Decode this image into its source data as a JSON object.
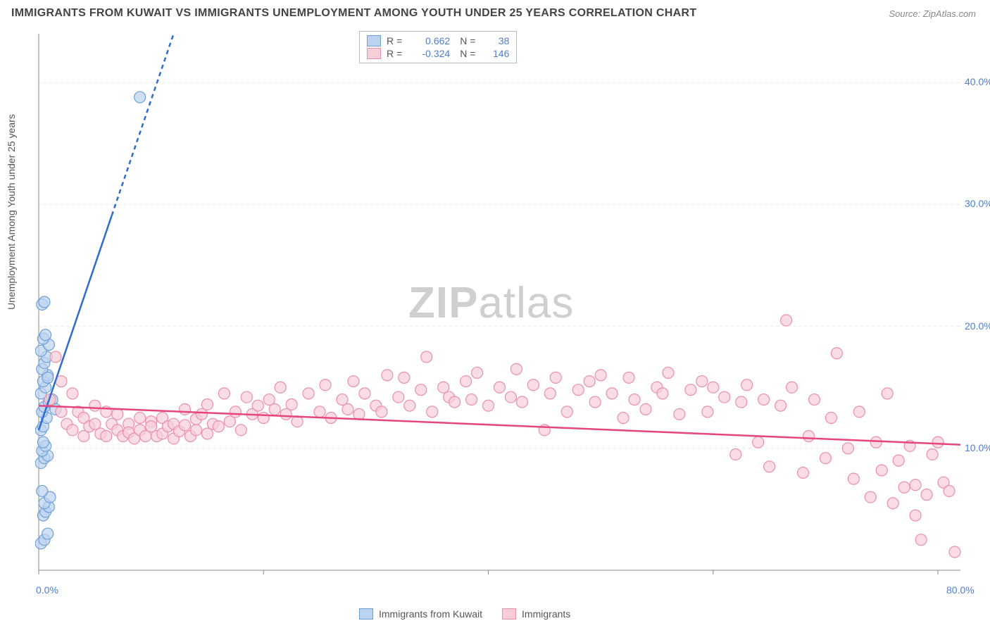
{
  "title": "IMMIGRANTS FROM KUWAIT VS IMMIGRANTS UNEMPLOYMENT AMONG YOUTH UNDER 25 YEARS CORRELATION CHART",
  "source": "Source: ZipAtlas.com",
  "ylabel": "Unemployment Among Youth under 25 years",
  "watermark_a": "ZIP",
  "watermark_b": "atlas",
  "chart": {
    "type": "scatter",
    "background_color": "#ffffff",
    "grid_color": "#e8e8e8",
    "axis_color": "#888888",
    "tick_label_color": "#4a7fd6",
    "xlim": [
      0,
      82
    ],
    "ylim": [
      0,
      44
    ],
    "y_ticks": [
      10,
      20,
      30,
      40
    ],
    "y_tick_labels": [
      "10.0%",
      "20.0%",
      "30.0%",
      "40.0%"
    ],
    "x_ticks": [
      0,
      20,
      40,
      60,
      80
    ],
    "x_tick_labels_left": "0.0%",
    "x_tick_labels_right": "80.0%",
    "series": [
      {
        "name": "Immigrants from Kuwait",
        "color_fill": "#bcd3ef",
        "color_stroke": "#6f9fd8",
        "marker_radius": 8,
        "line_color": "#2e6bd0",
        "line_width": 2.5,
        "line_dash_after_x": 6.5,
        "trend": {
          "x1": 0,
          "y1": 11.5,
          "x2": 12,
          "y2": 44
        },
        "R": "0.662",
        "N": "38",
        "points": [
          [
            0.2,
            2.2
          ],
          [
            0.5,
            2.5
          ],
          [
            0.8,
            3.0
          ],
          [
            0.4,
            4.5
          ],
          [
            0.6,
            4.8
          ],
          [
            0.9,
            5.2
          ],
          [
            0.5,
            5.5
          ],
          [
            1.0,
            6.0
          ],
          [
            0.3,
            6.5
          ],
          [
            0.2,
            8.8
          ],
          [
            0.5,
            9.2
          ],
          [
            0.8,
            9.4
          ],
          [
            0.3,
            9.8
          ],
          [
            0.6,
            10.2
          ],
          [
            0.4,
            10.5
          ],
          [
            0.2,
            11.5
          ],
          [
            0.4,
            11.8
          ],
          [
            0.7,
            12.5
          ],
          [
            0.3,
            13.0
          ],
          [
            0.5,
            13.4
          ],
          [
            0.9,
            13.8
          ],
          [
            0.2,
            14.5
          ],
          [
            0.6,
            15.0
          ],
          [
            0.4,
            15.5
          ],
          [
            0.8,
            16.0
          ],
          [
            0.3,
            16.5
          ],
          [
            0.5,
            17.0
          ],
          [
            0.7,
            17.5
          ],
          [
            0.2,
            18.0
          ],
          [
            0.9,
            18.5
          ],
          [
            0.4,
            19.0
          ],
          [
            0.6,
            19.3
          ],
          [
            0.3,
            21.8
          ],
          [
            0.5,
            22.0
          ],
          [
            0.8,
            15.8
          ],
          [
            1.2,
            14.0
          ],
          [
            1.5,
            13.2
          ],
          [
            9.0,
            38.8
          ]
        ]
      },
      {
        "name": "Immigrants",
        "color_fill": "#f7cdd8",
        "color_stroke": "#e98fac",
        "marker_radius": 8,
        "line_color": "#e6457d",
        "line_width": 2.5,
        "trend": {
          "x1": 0,
          "y1": 13.5,
          "x2": 82,
          "y2": 10.3
        },
        "R": "-0.324",
        "N": "146",
        "points": [
          [
            1,
            14
          ],
          [
            1.5,
            17.5
          ],
          [
            2,
            13
          ],
          [
            2,
            15.5
          ],
          [
            2.5,
            12
          ],
          [
            3,
            11.5
          ],
          [
            3,
            14.5
          ],
          [
            3.5,
            13
          ],
          [
            4,
            11
          ],
          [
            4,
            12.5
          ],
          [
            4.5,
            11.8
          ],
          [
            5,
            12
          ],
          [
            5,
            13.5
          ],
          [
            5.5,
            11.2
          ],
          [
            6,
            11
          ],
          [
            6,
            13
          ],
          [
            6.5,
            12
          ],
          [
            7,
            11.5
          ],
          [
            7,
            12.8
          ],
          [
            7.5,
            11
          ],
          [
            8,
            12
          ],
          [
            8,
            11.3
          ],
          [
            8.5,
            10.8
          ],
          [
            9,
            12.5
          ],
          [
            9,
            11.5
          ],
          [
            9.5,
            11
          ],
          [
            10,
            12.2
          ],
          [
            10,
            11.8
          ],
          [
            10.5,
            11
          ],
          [
            11,
            12.5
          ],
          [
            11,
            11.2
          ],
          [
            11.5,
            11.8
          ],
          [
            12,
            10.8
          ],
          [
            12,
            12
          ],
          [
            12.5,
            11.4
          ],
          [
            13,
            11.9
          ],
          [
            13,
            13.2
          ],
          [
            13.5,
            11
          ],
          [
            14,
            12.4
          ],
          [
            14,
            11.5
          ],
          [
            14.5,
            12.8
          ],
          [
            15,
            11.2
          ],
          [
            15,
            13.6
          ],
          [
            15.5,
            12
          ],
          [
            16,
            11.8
          ],
          [
            16.5,
            14.5
          ],
          [
            17,
            12.2
          ],
          [
            17.5,
            13
          ],
          [
            18,
            11.5
          ],
          [
            18.5,
            14.2
          ],
          [
            19,
            12.8
          ],
          [
            19.5,
            13.5
          ],
          [
            20,
            12.5
          ],
          [
            20.5,
            14
          ],
          [
            21,
            13.2
          ],
          [
            21.5,
            15
          ],
          [
            22,
            12.8
          ],
          [
            22.5,
            13.6
          ],
          [
            23,
            12.2
          ],
          [
            24,
            14.5
          ],
          [
            25,
            13
          ],
          [
            25.5,
            15.2
          ],
          [
            26,
            12.5
          ],
          [
            27,
            14
          ],
          [
            27.5,
            13.2
          ],
          [
            28,
            15.5
          ],
          [
            28.5,
            12.8
          ],
          [
            29,
            14.5
          ],
          [
            30,
            13.5
          ],
          [
            30.5,
            13
          ],
          [
            31,
            16
          ],
          [
            32,
            14.2
          ],
          [
            32.5,
            15.8
          ],
          [
            33,
            13.5
          ],
          [
            34,
            14.8
          ],
          [
            34.5,
            17.5
          ],
          [
            35,
            13
          ],
          [
            36,
            15
          ],
          [
            36.5,
            14.2
          ],
          [
            37,
            13.8
          ],
          [
            38,
            15.5
          ],
          [
            38.5,
            14
          ],
          [
            39,
            16.2
          ],
          [
            40,
            13.5
          ],
          [
            41,
            15
          ],
          [
            42,
            14.2
          ],
          [
            42.5,
            16.5
          ],
          [
            43,
            13.8
          ],
          [
            44,
            15.2
          ],
          [
            45,
            11.5
          ],
          [
            45.5,
            14.5
          ],
          [
            46,
            15.8
          ],
          [
            47,
            13
          ],
          [
            48,
            14.8
          ],
          [
            49,
            15.5
          ],
          [
            49.5,
            13.8
          ],
          [
            50,
            16
          ],
          [
            51,
            14.5
          ],
          [
            52,
            12.5
          ],
          [
            52.5,
            15.8
          ],
          [
            53,
            14
          ],
          [
            54,
            13.2
          ],
          [
            55,
            15
          ],
          [
            55.5,
            14.5
          ],
          [
            56,
            16.2
          ],
          [
            57,
            12.8
          ],
          [
            58,
            14.8
          ],
          [
            59,
            15.5
          ],
          [
            59.5,
            13
          ],
          [
            60,
            15
          ],
          [
            61,
            14.2
          ],
          [
            62,
            9.5
          ],
          [
            62.5,
            13.8
          ],
          [
            63,
            15.2
          ],
          [
            64,
            10.5
          ],
          [
            64.5,
            14
          ],
          [
            65,
            8.5
          ],
          [
            66,
            13.5
          ],
          [
            66.5,
            20.5
          ],
          [
            67,
            15
          ],
          [
            68,
            8
          ],
          [
            68.5,
            11
          ],
          [
            69,
            14
          ],
          [
            70,
            9.2
          ],
          [
            70.5,
            12.5
          ],
          [
            71,
            17.8
          ],
          [
            72,
            10
          ],
          [
            72.5,
            7.5
          ],
          [
            73,
            13
          ],
          [
            74,
            6
          ],
          [
            74.5,
            10.5
          ],
          [
            75,
            8.2
          ],
          [
            75.5,
            14.5
          ],
          [
            76,
            5.5
          ],
          [
            76.5,
            9
          ],
          [
            77,
            6.8
          ],
          [
            77.5,
            10.2
          ],
          [
            78,
            7
          ],
          [
            78.5,
            2.5
          ],
          [
            79,
            6.2
          ],
          [
            79.5,
            9.5
          ],
          [
            80,
            10.5
          ],
          [
            80.5,
            7.2
          ],
          [
            81,
            6.5
          ],
          [
            81.5,
            1.5
          ],
          [
            78,
            4.5
          ]
        ]
      }
    ]
  },
  "legend_bottom": {
    "series1_label": "Immigrants from Kuwait",
    "series2_label": "Immigrants"
  },
  "legend_top": {
    "r_label": "R =",
    "n_label": "N ="
  }
}
